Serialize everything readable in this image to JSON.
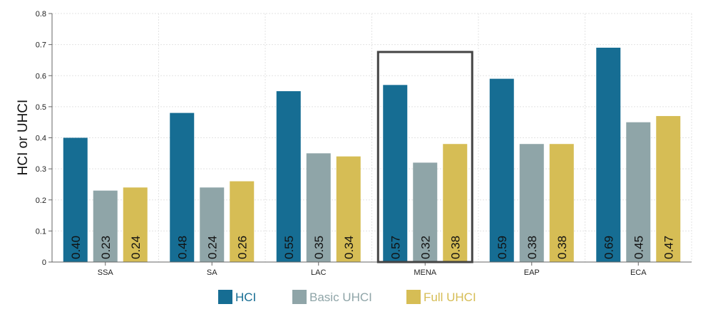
{
  "chart_data": {
    "type": "bar",
    "ylabel": "HCI or UHCI",
    "xlabel": "",
    "ylim": [
      0,
      0.8
    ],
    "yticks": [
      "0",
      "0.1",
      "0.2",
      "0.3",
      "0.4",
      "0.5",
      "0.6",
      "0.7",
      "0.8"
    ],
    "grid": true,
    "legend_position": "bottom",
    "categories": [
      "SSA",
      "SA",
      "LAC",
      "MENA",
      "EAP",
      "ECA"
    ],
    "series": [
      {
        "name": "HCI",
        "color": "#166d93",
        "values": [
          0.4,
          0.48,
          0.55,
          0.57,
          0.59,
          0.69
        ],
        "labels": [
          "0.40",
          "0.48",
          "0.55",
          "0.57",
          "0.59",
          "0.69"
        ]
      },
      {
        "name": "Basic UHCI",
        "color": "#8fa5a8",
        "values": [
          0.23,
          0.24,
          0.35,
          0.32,
          0.38,
          0.45
        ],
        "labels": [
          "0.23",
          "0.24",
          "0.35",
          "0.32",
          "0.38",
          "0.45"
        ]
      },
      {
        "name": "Full UHCI",
        "color": "#d6bd55",
        "values": [
          0.24,
          0.26,
          0.34,
          0.38,
          0.38,
          0.47
        ],
        "labels": [
          "0.24",
          "0.26",
          "0.34",
          "0.38",
          "0.38",
          "0.47"
        ]
      }
    ],
    "highlighted_category": "MENA",
    "highlight_color": "#444444"
  }
}
